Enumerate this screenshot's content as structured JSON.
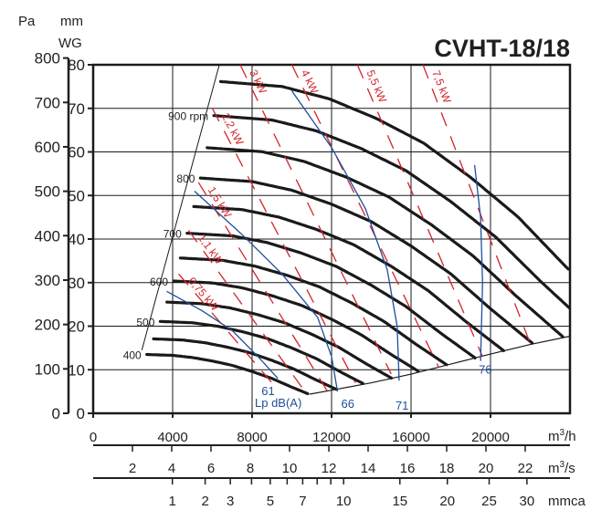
{
  "chart_data": {
    "type": "line",
    "title": "CVHT-18/18",
    "left_axis": {
      "unit": "Pa",
      "ticks": [
        0,
        100,
        200,
        300,
        400,
        500,
        600,
        700,
        800
      ],
      "range": [
        0,
        800
      ]
    },
    "y_axis": {
      "unit_line1": "mm",
      "unit_line2": "WG",
      "ticks": [
        0,
        10,
        20,
        30,
        40,
        50,
        60,
        70,
        80
      ],
      "range": [
        0,
        80
      ]
    },
    "x_axis": {
      "unit": "m3/h",
      "unit_base": "m",
      "unit_sup": "3",
      "unit_tail": "/h",
      "ticks": [
        0,
        4000,
        8000,
        12000,
        16000,
        20000
      ],
      "range": [
        0,
        24000
      ]
    },
    "axis_m3s": {
      "unit_base": "m",
      "unit_sup": "3",
      "unit_tail": "/s",
      "ticks": [
        2,
        4,
        6,
        8,
        10,
        12,
        14,
        16,
        18,
        20,
        22
      ]
    },
    "axis_mmca": {
      "unit": "mmca",
      "ticks": [
        1,
        2,
        3,
        4,
        5,
        6,
        7,
        8,
        9,
        10,
        15,
        20,
        25,
        30
      ],
      "labels": [
        1,
        2,
        3,
        5,
        7,
        10,
        15,
        20,
        25,
        30
      ]
    },
    "grid": true,
    "fan_speeds_rpm": [
      400,
      450,
      500,
      550,
      600,
      650,
      700,
      750,
      800,
      850,
      900,
      950
    ],
    "speed_labels": [
      {
        "rpm": 400,
        "text": "400"
      },
      {
        "rpm": 500,
        "text": "500"
      },
      {
        "rpm": 600,
        "text": "600"
      },
      {
        "rpm": 700,
        "text": "700"
      },
      {
        "rpm": 800,
        "text": "800"
      },
      {
        "rpm": 900,
        "text": "900 rpm"
      }
    ],
    "base_curve_400rpm": [
      [
        2700,
        13.5
      ],
      [
        4000,
        13.3
      ],
      [
        5000,
        12.8
      ],
      [
        6000,
        12.0
      ],
      [
        7000,
        11.0
      ],
      [
        8000,
        9.6
      ],
      [
        9000,
        8.0
      ],
      [
        10000,
        6.0
      ],
      [
        10800,
        4.5
      ]
    ],
    "left_limit": [
      [
        2450,
        14.5
      ],
      [
        6350,
        80
      ]
    ],
    "right_limit": [
      [
        10900,
        4.4
      ],
      [
        12000,
        5.3
      ],
      [
        14000,
        7.0
      ],
      [
        16000,
        9.0
      ],
      [
        18000,
        11.3
      ],
      [
        20000,
        13.6
      ],
      [
        22000,
        15.8
      ],
      [
        24000,
        17.7
      ]
    ],
    "power_lines": [
      {
        "label": "0,75 kW",
        "points": [
          [
            4300,
            32
          ],
          [
            9000,
            7
          ]
        ]
      },
      {
        "label": "1,1 kW",
        "points": [
          [
            4800,
            42
          ],
          [
            10500,
            6
          ]
        ]
      },
      {
        "label": "1,5 kW",
        "points": [
          [
            5300,
            53
          ],
          [
            11800,
            5
          ]
        ]
      },
      {
        "label": "2,2 kW",
        "points": [
          [
            6000,
            70
          ],
          [
            13200,
            7
          ]
        ]
      },
      {
        "label": "3 kW",
        "points": [
          [
            7400,
            80
          ],
          [
            15000,
            9
          ]
        ]
      },
      {
        "label": "4 kW",
        "points": [
          [
            10000,
            80
          ],
          [
            17400,
            10.5
          ]
        ]
      },
      {
        "label": "5,5 kW",
        "points": [
          [
            13300,
            80
          ],
          [
            19600,
            13
          ]
        ]
      },
      {
        "label": "7,5 kW",
        "points": [
          [
            16600,
            80
          ],
          [
            22000,
            16
          ]
        ]
      }
    ],
    "noise_lines": [
      {
        "label": "61",
        "points": [
          [
            3700,
            28
          ],
          [
            5500,
            23.5
          ],
          [
            7000,
            19
          ],
          [
            8300,
            13
          ],
          [
            9300,
            8
          ]
        ]
      },
      {
        "label": "66",
        "points": [
          [
            5100,
            51
          ],
          [
            7500,
            41
          ],
          [
            9500,
            32
          ],
          [
            11300,
            22
          ],
          [
            12000,
            13
          ],
          [
            12300,
            5
          ]
        ]
      },
      {
        "label": "71",
        "points": [
          [
            10000,
            74
          ],
          [
            12000,
            61
          ],
          [
            13700,
            47
          ],
          [
            14800,
            33
          ],
          [
            15300,
            20
          ],
          [
            15400,
            7.5
          ]
        ]
      },
      {
        "label": "76",
        "points": [
          [
            19200,
            57
          ],
          [
            19500,
            45
          ],
          [
            19600,
            30
          ],
          [
            19500,
            12
          ]
        ]
      }
    ],
    "noise_unit": "Lp dB(A)",
    "colors": {
      "fan_curve": "#1a1a1a",
      "power": "#d2232a",
      "noise": "#1f4e9c",
      "grid": "#1a1a1a"
    }
  }
}
